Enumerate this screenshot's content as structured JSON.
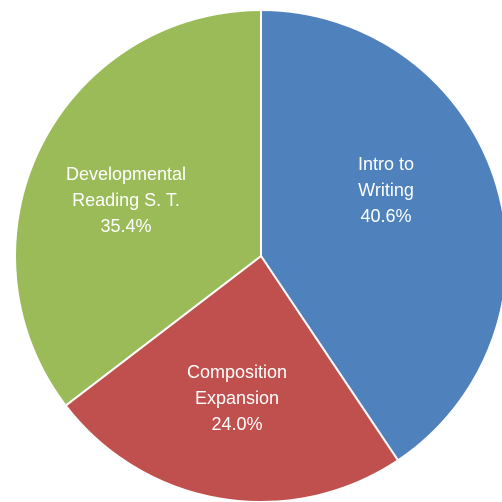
{
  "chart_data": {
    "type": "pie",
    "title": "",
    "slices": [
      {
        "label_lines": [
          "Intro to",
          "Writing"
        ],
        "value": 40.6,
        "value_label": "40.6%",
        "color": "#4F81BD"
      },
      {
        "label_lines": [
          "Composition",
          "Expansion"
        ],
        "value": 24.0,
        "value_label": "24.0%",
        "color": "#C0504D"
      },
      {
        "label_lines": [
          "Developmental",
          "Reading S. T."
        ],
        "value": 35.4,
        "value_label": "35.4%",
        "color": "#9BBB59"
      }
    ],
    "start_angle": "12 o'clock",
    "direction": "clockwise",
    "slice_border_color": "#ffffff",
    "label_color": "#ffffff",
    "legend": "none"
  }
}
